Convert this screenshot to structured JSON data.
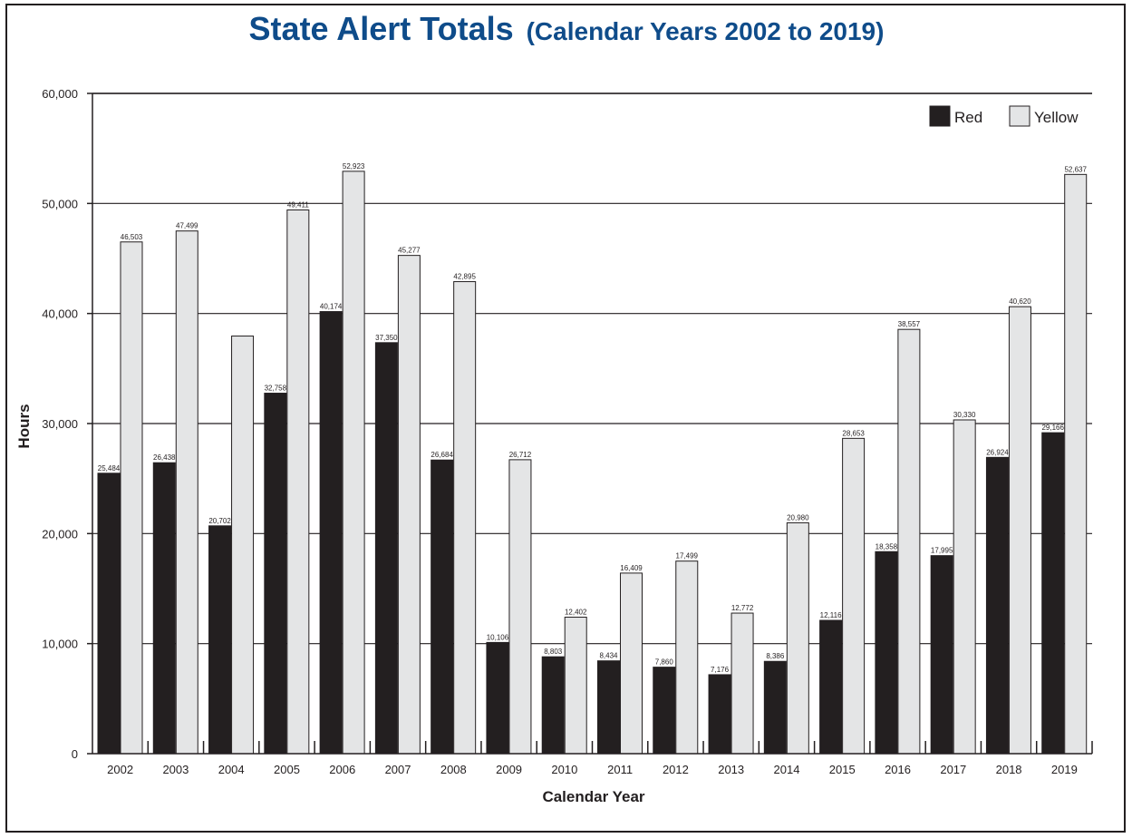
{
  "chart_data": {
    "type": "bar",
    "title": "State Alert Totals",
    "subtitle": "(Calendar Years 2002 to 2019)",
    "xlabel": "Calendar Year",
    "ylabel": "Hours",
    "ylim": [
      0,
      60000
    ],
    "yticks": [
      0,
      10000,
      20000,
      30000,
      40000,
      50000,
      60000
    ],
    "ytick_labels": [
      "0",
      "10,000",
      "20,000",
      "30,000",
      "40,000",
      "50,000",
      "60,000"
    ],
    "grid": true,
    "legend_position": "top-right",
    "categories": [
      "2002",
      "2003",
      "2004",
      "2005",
      "2006",
      "2007",
      "2008",
      "2009",
      "2010",
      "2011",
      "2012",
      "2013",
      "2014",
      "2015",
      "2016",
      "2017",
      "2018",
      "2019"
    ],
    "series": [
      {
        "name": "Red",
        "color": "#231f20",
        "values": [
          25484,
          26438,
          20702,
          32758,
          40174,
          37350,
          26684,
          10106,
          8803,
          8434,
          7860,
          7176,
          8386,
          12116,
          18358,
          17995,
          26924,
          29166
        ],
        "labels": [
          "25,484",
          "26,438",
          "20,702",
          "32,758",
          "40,174",
          "37,350",
          "26,684",
          "10,106",
          "8,803",
          "8,434",
          "7,860",
          "7,176",
          "8,386",
          "12,116",
          "18,358",
          "17,995",
          "26,924",
          "29,166"
        ]
      },
      {
        "name": "Yellow",
        "color": "#e4e5e6",
        "values": [
          46503,
          47499,
          37950,
          49411,
          52923,
          45277,
          42895,
          26712,
          12402,
          16409,
          17499,
          12772,
          20980,
          28653,
          38557,
          30330,
          40620,
          52637
        ],
        "labels": [
          "46,503",
          "47,499",
          "",
          "49,411",
          "52,923",
          "45,277",
          "42,895",
          "26,712",
          "12,402",
          "16,409",
          "17,499",
          "12,772",
          "20,980",
          "28,653",
          "38,557",
          "30,330",
          "40,620",
          "52,637"
        ]
      }
    ]
  }
}
